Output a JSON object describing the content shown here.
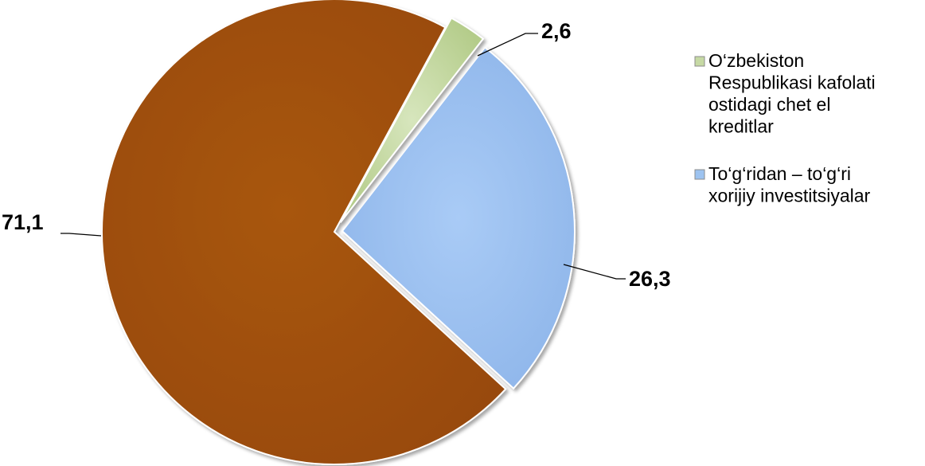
{
  "chart_data": {
    "type": "pie",
    "title": "",
    "slices": [
      {
        "value": 2.6,
        "label": "2,6",
        "color": "#C6D9A4",
        "legend": [
          "O‘zbekiston",
          "Respublikasi kafolati",
          "ostidagi chet el",
          "kreditlar"
        ]
      },
      {
        "value": 26.3,
        "label": "26,3",
        "color": "#9DC3F0",
        "legend": [
          "To‘g‘ridan – to‘g‘ri",
          "xorijiy  investitsiyalar"
        ]
      },
      {
        "value": 71.1,
        "label": "71,1",
        "color": "#A0500E",
        "legend": []
      }
    ],
    "legend_position": "right"
  }
}
